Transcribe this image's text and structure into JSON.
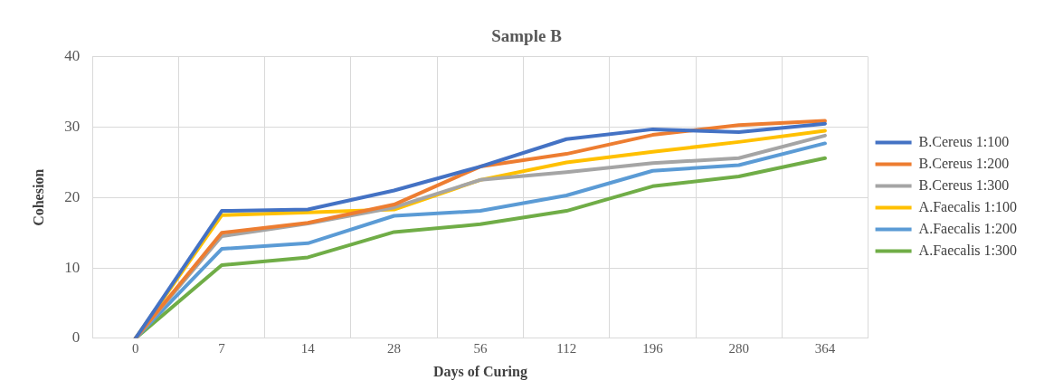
{
  "chart_data": {
    "type": "line",
    "title": "Sample B",
    "xlabel": "Days of Curing",
    "ylabel": "Cohesion",
    "categories": [
      "0",
      "7",
      "14",
      "28",
      "56",
      "112",
      "196",
      "280",
      "364"
    ],
    "series": [
      {
        "name": "B.Cereus 1:100",
        "color": "#4472c4",
        "values": [
          0,
          18.1,
          18.3,
          21,
          24.4,
          28.3,
          29.7,
          29.3,
          30.5
        ]
      },
      {
        "name": "B.Cereus 1:200",
        "color": "#ed7d31",
        "values": [
          0,
          15,
          16.4,
          19,
          24.4,
          26.2,
          28.9,
          30.3,
          30.9
        ]
      },
      {
        "name": "B.Cereus 1:300",
        "color": "#a5a5a5",
        "values": [
          0,
          14.5,
          16.3,
          18.6,
          22.5,
          23.6,
          24.9,
          25.6,
          28.8
        ]
      },
      {
        "name": "A.Faecalis 1:100",
        "color": "#ffc000",
        "values": [
          0,
          17.5,
          17.9,
          18.3,
          22.5,
          25,
          26.5,
          27.9,
          29.5
        ]
      },
      {
        "name": "A.Faecalis 1:200",
        "color": "#5b9bd5",
        "values": [
          0,
          12.7,
          13.5,
          17.4,
          18.1,
          20.3,
          23.8,
          24.6,
          27.7
        ]
      },
      {
        "name": "A.Faecalis 1:300",
        "color": "#70ad47",
        "values": [
          0,
          10.4,
          11.5,
          15.1,
          16.2,
          18.1,
          21.6,
          23,
          25.6
        ]
      }
    ],
    "ylim": [
      0,
      40
    ],
    "yticks": [
      0,
      10,
      20,
      30,
      40
    ],
    "grid": true,
    "legend": "right",
    "marker": "none"
  }
}
